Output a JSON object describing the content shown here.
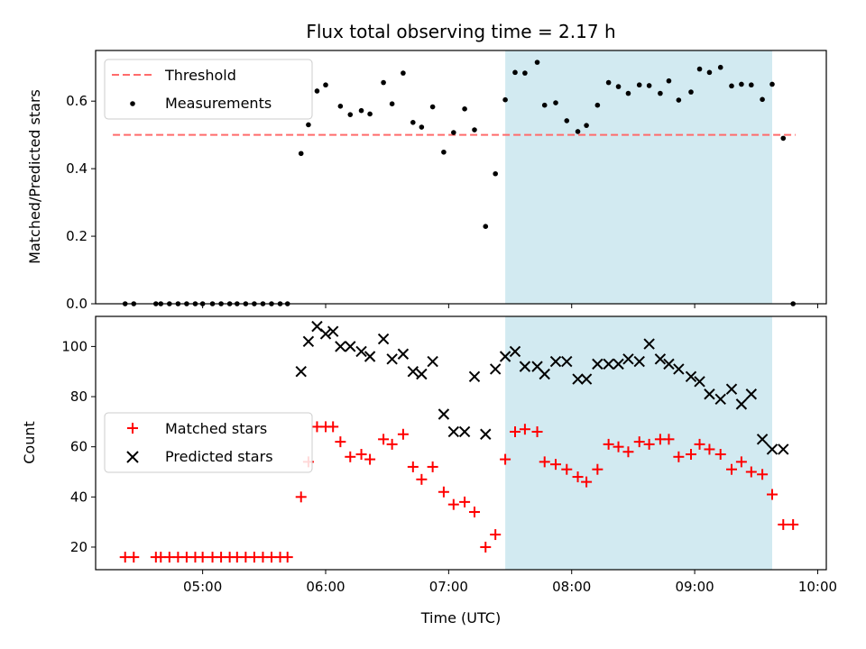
{
  "chart_data": [
    {
      "type": "scatter",
      "title": "Flux total observing time = 2.17 h",
      "xlabel": "",
      "ylabel": "Matched/Predicted stars",
      "xlim_hours": [
        4.13,
        10.07
      ],
      "ylim": [
        0,
        0.75
      ],
      "yticks": [
        "0.0",
        "0.2",
        "0.4",
        "0.6"
      ],
      "ytick_values": [
        0,
        0.2,
        0.4,
        0.6
      ],
      "legend_position": "upper-left",
      "highlight_span_hours": [
        7.46,
        9.63
      ],
      "highlight_color": "#add8e6",
      "threshold": {
        "name": "Threshold",
        "y": 0.5,
        "x": [
          4.27,
          9.82
        ],
        "color": "#ff6b6b"
      },
      "series": [
        {
          "name": "Measurements",
          "color": "#000000",
          "x": [
            4.37,
            4.44,
            4.62,
            4.66,
            4.73,
            4.8,
            4.87,
            4.94,
            5.0,
            5.08,
            5.15,
            5.22,
            5.28,
            5.35,
            5.42,
            5.49,
            5.56,
            5.63,
            5.69,
            5.8,
            5.86,
            5.93,
            6.0,
            6.12,
            6.2,
            6.29,
            6.36,
            6.47,
            6.54,
            6.63,
            6.71,
            6.78,
            6.87,
            6.96,
            7.04,
            7.13,
            7.21,
            7.3,
            7.38,
            7.46,
            7.54,
            7.62,
            7.72,
            7.78,
            7.87,
            7.96,
            8.05,
            8.12,
            8.21,
            8.3,
            8.38,
            8.46,
            8.55,
            8.63,
            8.72,
            8.79,
            8.87,
            8.97,
            9.04,
            9.12,
            9.21,
            9.3,
            9.38,
            9.46,
            9.55,
            9.63,
            9.72,
            9.8
          ],
          "y": [
            0,
            0,
            0,
            0,
            0,
            0,
            0,
            0,
            0,
            0,
            0,
            0,
            0,
            0,
            0,
            0,
            0,
            0,
            0,
            0.445,
            0.53,
            0.63,
            0.648,
            0.585,
            0.56,
            0.572,
            0.562,
            0.655,
            0.592,
            0.683,
            0.537,
            0.523,
            0.583,
            0.449,
            0.507,
            0.577,
            0.515,
            0.229,
            0.385,
            0.604,
            0.685,
            0.683,
            0.715,
            0.588,
            0.595,
            0.542,
            0.51,
            0.528,
            0.588,
            0.655,
            0.643,
            0.623,
            0.648,
            0.646,
            0.623,
            0.66,
            0.603,
            0.627,
            0.695,
            0.685,
            0.7,
            0.645,
            0.65,
            0.648,
            0.605,
            0.65,
            0.49,
            0
          ]
        }
      ]
    },
    {
      "type": "scatter",
      "title": "",
      "xlabel": "Time (UTC)",
      "ylabel": "Count",
      "xlim_hours": [
        4.13,
        10.07
      ],
      "xticks": [
        "05:00",
        "06:00",
        "07:00",
        "08:00",
        "09:00",
        "10:00"
      ],
      "xtick_hours": [
        5,
        6,
        7,
        8,
        9,
        10
      ],
      "ylim": [
        11,
        112
      ],
      "yticks": [
        "20",
        "40",
        "60",
        "80",
        "100"
      ],
      "ytick_values": [
        20,
        40,
        60,
        80,
        100
      ],
      "legend_position": "center-left",
      "highlight_span_hours": [
        7.46,
        9.63
      ],
      "highlight_color": "#add8e6",
      "series": [
        {
          "name": "Matched stars",
          "marker": "plus",
          "color": "#ff0000",
          "x": [
            4.37,
            4.44,
            4.62,
            4.66,
            4.73,
            4.8,
            4.87,
            4.94,
            5.0,
            5.08,
            5.15,
            5.22,
            5.28,
            5.35,
            5.42,
            5.49,
            5.56,
            5.63,
            5.69,
            5.8,
            5.86,
            5.93,
            6.0,
            6.06,
            6.12,
            6.2,
            6.29,
            6.36,
            6.47,
            6.54,
            6.63,
            6.71,
            6.78,
            6.87,
            6.96,
            7.04,
            7.13,
            7.21,
            7.3,
            7.38,
            7.46,
            7.54,
            7.62,
            7.72,
            7.78,
            7.87,
            7.96,
            8.05,
            8.12,
            8.21,
            8.3,
            8.38,
            8.46,
            8.55,
            8.63,
            8.72,
            8.79,
            8.87,
            8.97,
            9.04,
            9.12,
            9.21,
            9.3,
            9.38,
            9.46,
            9.55,
            9.63,
            9.72,
            9.8
          ],
          "y": [
            16,
            16,
            16,
            16,
            16,
            16,
            16,
            16,
            16,
            16,
            16,
            16,
            16,
            16,
            16,
            16,
            16,
            16,
            16,
            40,
            54,
            68,
            68,
            68,
            62,
            56,
            57,
            55,
            63,
            61,
            65,
            52,
            47,
            52,
            42,
            37,
            38,
            34,
            20,
            25,
            55,
            66,
            67,
            66,
            54,
            53,
            51,
            48,
            46,
            51,
            61,
            60,
            58,
            62,
            61,
            63,
            63,
            56,
            57,
            61,
            59,
            57,
            51,
            54,
            50,
            49,
            41,
            29,
            29
          ]
        },
        {
          "name": "Predicted stars",
          "marker": "x",
          "color": "#000000",
          "x": [
            5.8,
            5.86,
            5.93,
            6.0,
            6.06,
            6.12,
            6.2,
            6.29,
            6.36,
            6.47,
            6.54,
            6.63,
            6.71,
            6.78,
            6.87,
            6.96,
            7.04,
            7.13,
            7.21,
            7.3,
            7.38,
            7.46,
            7.54,
            7.62,
            7.72,
            7.78,
            7.87,
            7.96,
            8.05,
            8.12,
            8.21,
            8.3,
            8.38,
            8.46,
            8.55,
            8.63,
            8.72,
            8.79,
            8.87,
            8.97,
            9.04,
            9.12,
            9.21,
            9.3,
            9.38,
            9.46,
            9.55,
            9.63,
            9.72
          ],
          "y": [
            90,
            102,
            108,
            105,
            106,
            100,
            100,
            98,
            96,
            103,
            95,
            97,
            90,
            89,
            94,
            73,
            66,
            66,
            88,
            65,
            91,
            96,
            98,
            92,
            92,
            89,
            94,
            94,
            87,
            87,
            93,
            93,
            93,
            95,
            94,
            101,
            95,
            93,
            91,
            88,
            86,
            81,
            79,
            83,
            77,
            81,
            63,
            59,
            59
          ]
        }
      ]
    }
  ]
}
